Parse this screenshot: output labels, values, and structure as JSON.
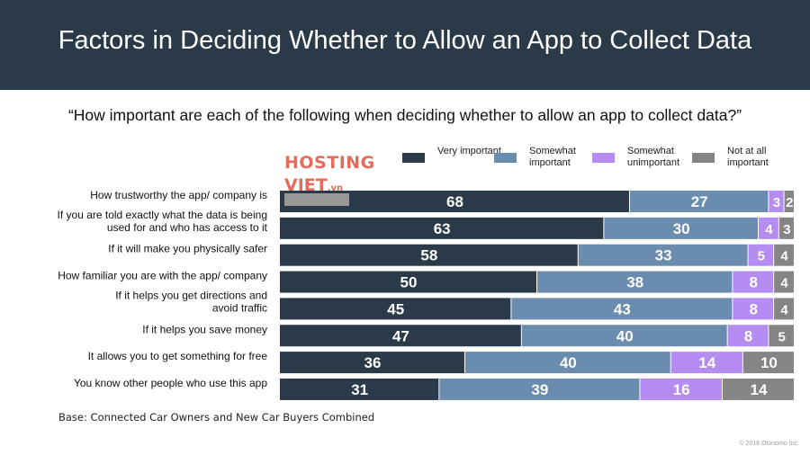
{
  "header": {
    "title": "Factors in Deciding Whether to Allow an App to Collect Data"
  },
  "subtitle": "“How important are each of the following when deciding whether to allow an app to collect data?”",
  "watermark": {
    "line1": "HOSTING",
    "line2": "VIET",
    "line2_suffix": ".vn"
  },
  "colors": {
    "very_important": "#2a3a49",
    "somewhat_important": "#6a8cae",
    "somewhat_unimportant": "#b48cf2",
    "not_at_all_important": "#858585"
  },
  "legend": [
    {
      "label": "Very important",
      "color": "#2a3a49"
    },
    {
      "label": "Somewhat important",
      "color": "#6a8cae"
    },
    {
      "label": "Somewhat unimportant",
      "color": "#b48cf2"
    },
    {
      "label": "Not at all important",
      "color": "#858585"
    }
  ],
  "chart_data": {
    "type": "bar",
    "orientation": "horizontal",
    "stacked": true,
    "title": "Factors in Deciding Whether to Allow an App to Collect Data",
    "categories": [
      [
        "How trustworthy the app/ company is"
      ],
      [
        "If you are told exactly what the data is being",
        "used for and who has access to it"
      ],
      [
        "If it will make you physically safer"
      ],
      [
        "How familiar you are with the app/ company"
      ],
      [
        "If it helps you get directions and",
        "avoid traffic"
      ],
      [
        "If it helps you save money"
      ],
      [
        "It allows you to get something for free"
      ],
      [
        "You know other people who use this app"
      ]
    ],
    "series": [
      {
        "name": "Very important",
        "values": [
          68,
          63,
          58,
          50,
          45,
          47,
          36,
          31
        ]
      },
      {
        "name": "Somewhat important",
        "values": [
          27,
          30,
          33,
          38,
          43,
          40,
          40,
          39
        ]
      },
      {
        "name": "Somewhat unimportant",
        "values": [
          3,
          4,
          5,
          8,
          8,
          8,
          14,
          16
        ]
      },
      {
        "name": "Not at all important",
        "values": [
          2,
          3,
          4,
          4,
          4,
          5,
          10,
          14
        ]
      }
    ],
    "xlim": [
      0,
      100
    ]
  },
  "base_note": "Base: Connected Car Owners and New Car Buyers Combined",
  "copyright": "© 2018 Otonomo Inc."
}
